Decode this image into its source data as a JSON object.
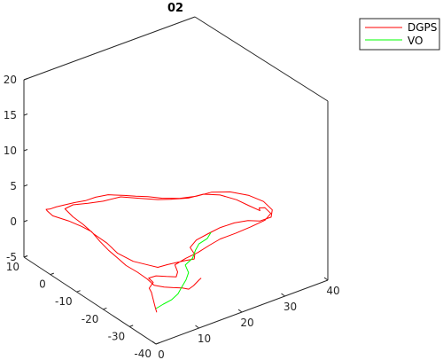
{
  "chart_data": {
    "type": "line",
    "title": "02",
    "view": "3d",
    "grid": false,
    "legend_position": "top-right",
    "axes": {
      "x": {
        "lim": [
          0,
          40
        ],
        "ticks": [
          0,
          10,
          20,
          30,
          40
        ]
      },
      "y": {
        "lim": [
          -40,
          10
        ],
        "ticks": [
          -40,
          -30,
          -20,
          -10,
          0,
          10
        ]
      },
      "z": {
        "lim": [
          -5,
          20
        ],
        "ticks": [
          -5,
          0,
          5,
          10,
          15,
          20
        ]
      }
    },
    "series": [
      {
        "name": "DGPS",
        "color": "#ff0000",
        "points": [
          [
            13.0,
            -36.0,
            0.4
          ],
          [
            12.2,
            -36.6,
            0.5
          ],
          [
            10.0,
            -38.0,
            0.5
          ],
          [
            8.3,
            -38.9,
            0.6
          ],
          [
            7.6,
            -37.6,
            0.6
          ],
          [
            6.2,
            -36.5,
            0.7
          ],
          [
            4.8,
            -35.3,
            0.8
          ],
          [
            3.7,
            -33.3,
            0.8
          ],
          [
            4.1,
            -30.0,
            0.8
          ],
          [
            4.2,
            -26.2,
            0.8
          ],
          [
            4.0,
            -22.2,
            0.8
          ],
          [
            4.4,
            -18.5,
            0.8
          ],
          [
            4.7,
            -14.4,
            0.9
          ],
          [
            5.4,
            -10.0,
            0.9
          ],
          [
            6.2,
            -5.5,
            1.0
          ],
          [
            5.9,
            -2.2,
            1.0
          ],
          [
            5.2,
            1.6,
            1.0
          ],
          [
            4.0,
            5.6,
            1.0
          ],
          [
            4.3,
            8.2,
            1.0
          ],
          [
            4.5,
            8.9,
            1.0
          ],
          [
            5.1,
            8.5,
            1.0
          ],
          [
            6.5,
            8.4,
            1.0
          ],
          [
            8.3,
            8.0,
            1.0
          ],
          [
            10.2,
            7.5,
            1.0
          ],
          [
            12.3,
            6.7,
            1.0
          ],
          [
            14.6,
            6.6,
            1.0
          ],
          [
            17.0,
            5.8,
            1.0
          ],
          [
            19.3,
            3.3,
            1.0
          ],
          [
            20.8,
            1.5,
            1.0
          ],
          [
            22.5,
            -0.3,
            1.0
          ],
          [
            24.2,
            -2.8,
            1.0
          ],
          [
            26.8,
            -5.3,
            1.0
          ],
          [
            29.8,
            -6.8,
            1.0
          ],
          [
            33.0,
            -7.4,
            1.0
          ],
          [
            35.8,
            -9.8,
            1.0
          ],
          [
            37.8,
            -13.7,
            1.0
          ],
          [
            38.6,
            -17.9,
            1.0
          ],
          [
            38.0,
            -22.2,
            1.0
          ],
          [
            36.2,
            -24.7,
            1.0
          ],
          [
            33.6,
            -24.6,
            1.0
          ],
          [
            32.0,
            -22.8,
            1.0
          ],
          [
            29.4,
            -21.8,
            1.0
          ],
          [
            26.3,
            -21.6,
            1.0
          ],
          [
            23.1,
            -22.2,
            1.0
          ],
          [
            19.9,
            -22.9,
            1.0
          ],
          [
            17.3,
            -24.8,
            1.0
          ],
          [
            16.4,
            -28.0,
            1.0
          ],
          [
            15.3,
            -29.6,
            1.0
          ],
          [
            13.8,
            -29.0,
            1.0
          ],
          [
            12.3,
            -28.6,
            1.0
          ],
          [
            10.0,
            -28.0,
            1.0
          ],
          [
            8.0,
            -27.7,
            1.0
          ],
          [
            7.2,
            -25.8,
            1.0
          ],
          [
            5.7,
            -22.1,
            1.0
          ],
          [
            5.2,
            -17.0,
            1.0
          ],
          [
            5.9,
            -11.9,
            1.0
          ],
          [
            6.0,
            -6.7,
            1.0
          ],
          [
            6.6,
            -1.7,
            1.0
          ],
          [
            6.8,
            2.5,
            1.0
          ],
          [
            7.4,
            6.5,
            1.0
          ],
          [
            9.5,
            6.9,
            1.0
          ],
          [
            12.1,
            5.4,
            1.0
          ],
          [
            14.8,
            4.1,
            1.0
          ],
          [
            18.4,
            3.3,
            1.0
          ],
          [
            20.6,
            0.5,
            1.0
          ],
          [
            23.3,
            -2.8,
            1.0
          ],
          [
            25.3,
            -4.4,
            1.0
          ],
          [
            28.2,
            -6.4,
            1.0
          ],
          [
            31.3,
            -7.0,
            1.0
          ],
          [
            33.6,
            -9.6,
            1.0
          ],
          [
            35.0,
            -13.6,
            1.0
          ],
          [
            35.5,
            -17.5,
            1.0
          ],
          [
            36.0,
            -20.8,
            1.0
          ],
          [
            36.5,
            -19.7,
            1.0
          ],
          [
            37.4,
            -20.4,
            1.0
          ],
          [
            37.0,
            -23.3,
            1.0
          ],
          [
            34.6,
            -25.0,
            1.0
          ],
          [
            31.0,
            -25.5,
            1.0
          ],
          [
            27.2,
            -25.8,
            1.0
          ],
          [
            23.7,
            -25.8,
            1.0
          ],
          [
            20.7,
            -26.6,
            1.0
          ],
          [
            17.3,
            -27.7,
            1.0
          ],
          [
            14.2,
            -28.2,
            1.0
          ],
          [
            11.1,
            -29.1,
            1.0
          ],
          [
            9.9,
            -32.1,
            1.0
          ],
          [
            8.6,
            -33.7,
            1.0
          ],
          [
            7.2,
            -32.2,
            1.0
          ],
          [
            5.8,
            -30.6,
            1.0
          ],
          [
            4.2,
            -30.4,
            1.0
          ],
          [
            3.9,
            -32.6,
            1.0
          ],
          [
            2.0,
            -34.2,
            1.0
          ],
          [
            1.4,
            -36.0,
            1.0
          ],
          [
            0.0,
            -39.0,
            1.0
          ],
          [
            -0.4,
            -40.5,
            0.2
          ],
          [
            -0.2,
            -40.6,
            -0.3
          ],
          [
            0.2,
            -40.0,
            -0.5
          ]
        ]
      },
      {
        "name": "VO",
        "color": "#00ff00",
        "points": [
          [
            0.0,
            -40.0,
            0.0
          ],
          [
            2.1,
            -39.4,
            0.0
          ],
          [
            4.3,
            -38.9,
            0.0
          ],
          [
            6.6,
            -37.6,
            0.0
          ],
          [
            8.5,
            -35.8,
            0.0
          ],
          [
            11.0,
            -33.5,
            0.0
          ],
          [
            13.0,
            -31.2,
            0.0
          ],
          [
            14.2,
            -28.0,
            0.0
          ],
          [
            16.8,
            -26.5,
            0.0
          ],
          [
            19.0,
            -24.0,
            0.0
          ],
          [
            21.0,
            -22.1,
            0.0
          ],
          [
            23.5,
            -21.2,
            0.0
          ],
          [
            25.4,
            -19.5,
            0.0
          ]
        ]
      }
    ]
  }
}
